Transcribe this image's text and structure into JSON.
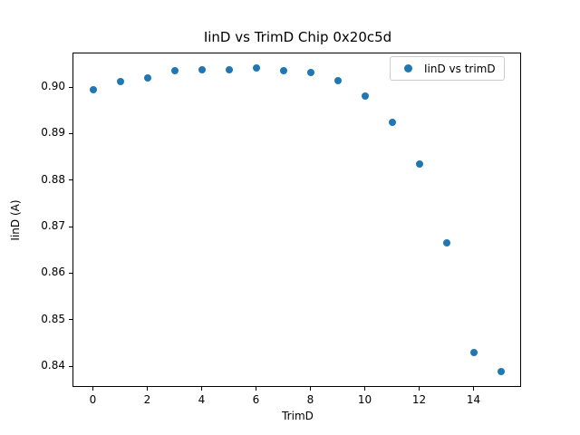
{
  "figure": {
    "background_color": "#ffffff",
    "title": "IinD vs TrimD Chip 0x20c5d"
  },
  "chart_data": {
    "type": "scatter",
    "title": "IinD vs TrimD Chip 0x20c5d",
    "xlabel": "TrimD",
    "ylabel": "IinD (A)",
    "grid": false,
    "xlim": [
      -0.75,
      15.75
    ],
    "ylim": [
      0.8355,
      0.9075
    ],
    "xtick_values": [
      0,
      2,
      4,
      6,
      8,
      10,
      12,
      14
    ],
    "xtick_labels": [
      "0",
      "2",
      "4",
      "6",
      "8",
      "10",
      "12",
      "14"
    ],
    "ytick_values": [
      0.84,
      0.85,
      0.86,
      0.87,
      0.88,
      0.89,
      0.9
    ],
    "ytick_labels": [
      "0.84",
      "0.85",
      "0.86",
      "0.87",
      "0.88",
      "0.89",
      "0.90"
    ],
    "series": [
      {
        "name": "IinD vs trimD",
        "color": "#1f77b4",
        "marker": "circle",
        "marker_diameter_px": 8,
        "x": [
          0,
          1,
          2,
          3,
          4,
          5,
          6,
          7,
          8,
          9,
          10,
          11,
          12,
          13,
          14,
          15
        ],
        "y": [
          0.8994,
          0.9011,
          0.902,
          0.9035,
          0.9037,
          0.9038,
          0.9042,
          0.9036,
          0.9032,
          0.9014,
          0.8981,
          0.8924,
          0.8835,
          0.8665,
          0.843,
          0.8388
        ]
      }
    ],
    "legend": {
      "position": "upper right",
      "entries": [
        {
          "label": "IinD vs trimD",
          "marker_color": "#1f77b4"
        }
      ]
    }
  }
}
